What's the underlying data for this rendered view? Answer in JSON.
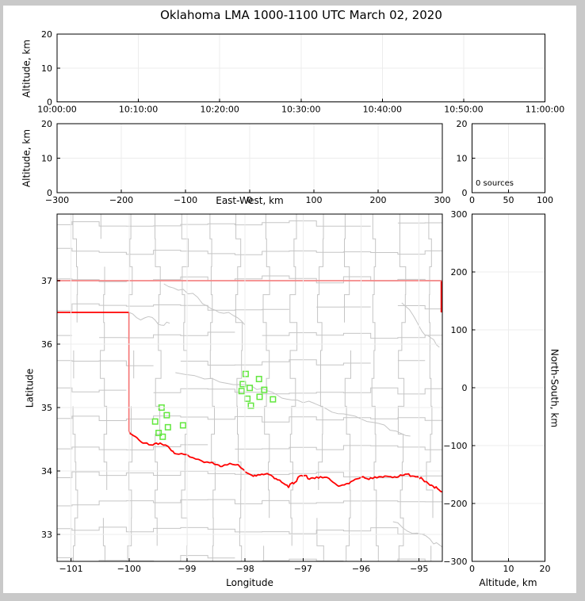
{
  "title": "Oklahoma LMA 1000-1100 UTC March 02, 2020",
  "annotation": {
    "sources_label": "0 sources"
  },
  "axis_labels": {
    "altitude": "Altitude, km",
    "east_west": "East-West, km",
    "latitude": "Latitude",
    "longitude": "Longitude",
    "north_south": "North-South, km"
  },
  "colors": {
    "accent_border": "#ff0000",
    "county_line": "#c5c5c5",
    "station_marker": "#62e73e",
    "gridline": "#ececec",
    "axis": "#000000",
    "frame": "#c9c9c9",
    "background": "#ffffff"
  },
  "chart_data": [
    {
      "id": "time_height",
      "type": "scatter",
      "title": "Oklahoma LMA 1000-1100 UTC March 02, 2020",
      "ylabel": "Altitude, km",
      "xticks": [
        "10:00:00",
        "10:10:00",
        "10:20:00",
        "10:30:00",
        "10:40:00",
        "10:50:00",
        "11:00:00"
      ],
      "yticks": [
        0,
        10,
        20
      ],
      "ylim": [
        0,
        20
      ],
      "points": []
    },
    {
      "id": "ew_height",
      "type": "scatter",
      "xlabel": "East-West, km",
      "ylabel": "Altitude, km",
      "xticks": [
        -300,
        -200,
        -100,
        0,
        100,
        200,
        300
      ],
      "xlim": [
        -300,
        300
      ],
      "yticks": [
        0,
        10,
        20
      ],
      "ylim": [
        0,
        20
      ],
      "points": []
    },
    {
      "id": "altitude_histogram",
      "type": "line",
      "annotation": "0 sources",
      "xticks": [
        0,
        50,
        100
      ],
      "xlim": [
        0,
        100
      ],
      "yticks": [
        0,
        10,
        20
      ],
      "ylim": [
        0,
        20
      ],
      "points": []
    },
    {
      "id": "plan_view_map",
      "type": "scatter",
      "xlabel": "Longitude",
      "ylabel": "Latitude",
      "xticks": [
        -101,
        -100,
        -99,
        -98,
        -97,
        -96,
        -95
      ],
      "xlim": [
        -101.24,
        -94.6
      ],
      "yticks": [
        33,
        34,
        35,
        36,
        37
      ],
      "ylim": [
        32.575,
        38.05
      ],
      "marker": "open-square",
      "stations": [
        [
          -97.99,
          35.53
        ],
        [
          -97.76,
          35.45
        ],
        [
          -98.04,
          35.37
        ],
        [
          -97.92,
          35.31
        ],
        [
          -98.06,
          35.26
        ],
        [
          -97.67,
          35.28
        ],
        [
          -97.96,
          35.14
        ],
        [
          -97.75,
          35.17
        ],
        [
          -97.52,
          35.13
        ],
        [
          -97.9,
          35.03
        ],
        [
          -99.44,
          35.0
        ],
        [
          -99.35,
          34.88
        ],
        [
          -99.55,
          34.78
        ],
        [
          -99.33,
          34.69
        ],
        [
          -99.07,
          34.72
        ],
        [
          -99.49,
          34.6
        ],
        [
          -99.42,
          34.54
        ]
      ]
    },
    {
      "id": "ns_height",
      "type": "scatter",
      "xlabel": "Altitude, km",
      "ylabel": "North-South, km",
      "xticks": [
        0,
        10,
        20
      ],
      "xlim": [
        0,
        20
      ],
      "yticks": [
        -300,
        -200,
        -100,
        0,
        100,
        200,
        300
      ],
      "ylim": [
        -300,
        300
      ],
      "points": []
    }
  ],
  "geometry": {
    "county_grid_seed": 7,
    "state_border_north": [
      [
        -101.24,
        37.0
      ],
      [
        -94.597,
        37.0
      ]
    ],
    "state_border_ne": [
      [
        -94.618,
        37.0
      ],
      [
        -94.618,
        36.5
      ]
    ],
    "state_border_west": [
      [
        -101.24,
        36.5
      ],
      [
        -100.0,
        36.5
      ],
      [
        -100.0,
        34.62
      ]
    ],
    "red_river": [
      [
        -100.0,
        34.62
      ],
      [
        -99.93,
        34.56
      ],
      [
        -99.83,
        34.49
      ],
      [
        -99.73,
        34.44
      ],
      [
        -99.62,
        34.41
      ],
      [
        -99.53,
        34.44
      ],
      [
        -99.43,
        34.42
      ],
      [
        -99.35,
        34.4
      ],
      [
        -99.27,
        34.32
      ],
      [
        -99.19,
        34.27
      ],
      [
        -99.05,
        34.26
      ],
      [
        -98.9,
        34.21
      ],
      [
        -98.75,
        34.16
      ],
      [
        -98.61,
        34.13
      ],
      [
        -98.48,
        34.1
      ],
      [
        -98.4,
        34.07
      ],
      [
        -98.26,
        34.12
      ],
      [
        -98.12,
        34.1
      ],
      [
        -97.99,
        33.98
      ],
      [
        -97.88,
        33.93
      ],
      [
        -97.81,
        33.92
      ],
      [
        -97.71,
        33.95
      ],
      [
        -97.62,
        33.96
      ],
      [
        -97.52,
        33.91
      ],
      [
        -97.44,
        33.86
      ],
      [
        -97.33,
        33.8
      ],
      [
        -97.25,
        33.74
      ],
      [
        -97.21,
        33.8
      ],
      [
        -97.14,
        33.82
      ],
      [
        -97.06,
        33.92
      ],
      [
        -96.97,
        33.93
      ],
      [
        -96.89,
        33.87
      ],
      [
        -96.8,
        33.88
      ],
      [
        -96.7,
        33.91
      ],
      [
        -96.59,
        33.9
      ],
      [
        -96.48,
        33.82
      ],
      [
        -96.39,
        33.76
      ],
      [
        -96.29,
        33.78
      ],
      [
        -96.21,
        33.8
      ],
      [
        -96.1,
        33.87
      ],
      [
        -96.0,
        33.9
      ],
      [
        -95.9,
        33.88
      ],
      [
        -95.8,
        33.88
      ],
      [
        -95.69,
        33.91
      ],
      [
        -95.59,
        33.92
      ],
      [
        -95.49,
        33.91
      ],
      [
        -95.39,
        33.9
      ],
      [
        -95.29,
        33.93
      ],
      [
        -95.21,
        33.95
      ],
      [
        -95.12,
        33.92
      ],
      [
        -95.02,
        33.91
      ],
      [
        -94.94,
        33.87
      ],
      [
        -94.84,
        33.8
      ],
      [
        -94.76,
        33.76
      ],
      [
        -94.68,
        33.72
      ],
      [
        -94.6,
        33.67
      ]
    ],
    "rivers": [
      [
        [
          -99.4,
          36.95
        ],
        [
          -99.15,
          36.85
        ],
        [
          -98.9,
          36.8
        ],
        [
          -98.65,
          36.6
        ],
        [
          -98.45,
          36.5
        ],
        [
          -98.2,
          36.45
        ],
        [
          -98.0,
          36.3
        ]
      ],
      [
        [
          -100.0,
          36.5
        ],
        [
          -99.8,
          36.38
        ],
        [
          -99.6,
          36.42
        ],
        [
          -99.45,
          36.3
        ],
        [
          -99.3,
          36.33
        ]
      ],
      [
        [
          -99.2,
          35.55
        ],
        [
          -98.7,
          35.45
        ],
        [
          -98.3,
          35.38
        ],
        [
          -98.0,
          35.36
        ],
        [
          -97.7,
          35.3
        ],
        [
          -97.45,
          35.2
        ],
        [
          -97.2,
          35.12
        ],
        [
          -96.9,
          35.1
        ],
        [
          -96.6,
          34.98
        ],
        [
          -96.3,
          34.9
        ],
        [
          -96.0,
          34.82
        ],
        [
          -95.7,
          34.75
        ],
        [
          -95.4,
          34.63
        ],
        [
          -95.15,
          34.55
        ]
      ],
      [
        [
          -95.3,
          36.65
        ],
        [
          -95.1,
          36.45
        ],
        [
          -94.95,
          36.2
        ],
        [
          -94.8,
          36.1
        ],
        [
          -94.65,
          35.95
        ]
      ],
      [
        [
          -95.45,
          33.2
        ],
        [
          -95.2,
          33.05
        ],
        [
          -94.95,
          33.0
        ],
        [
          -94.75,
          32.85
        ],
        [
          -94.6,
          32.8
        ]
      ]
    ]
  }
}
